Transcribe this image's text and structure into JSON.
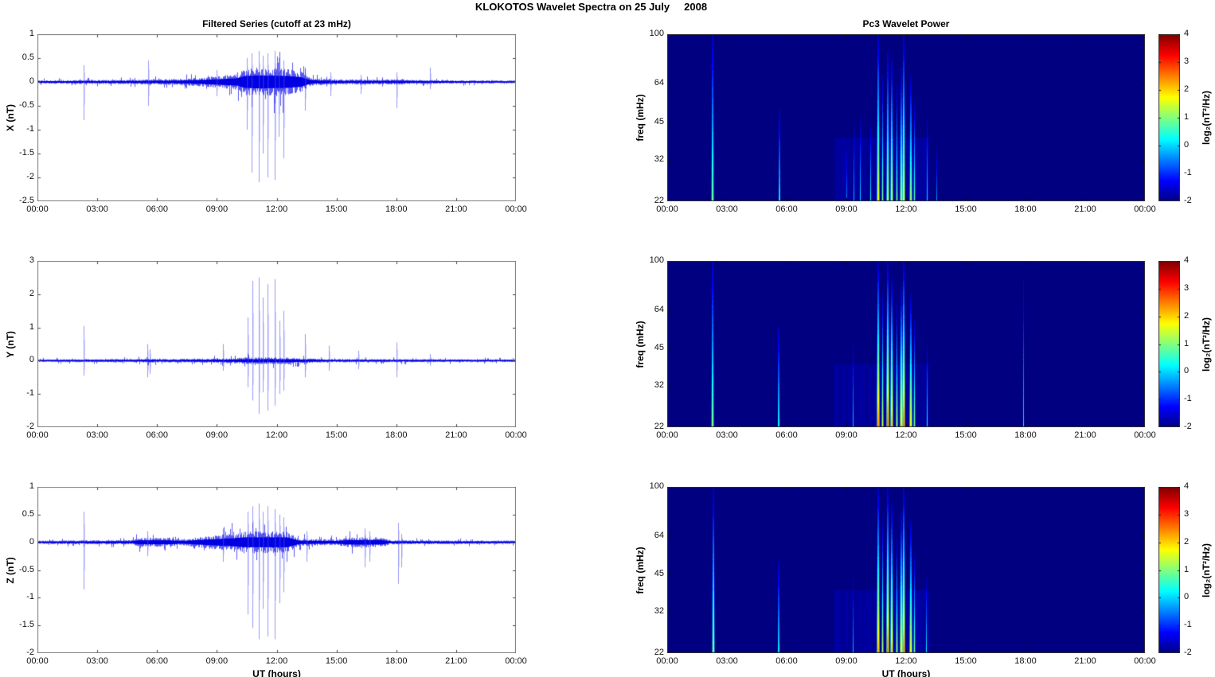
{
  "figure_title": "KLOKOTOS Wavelet Spectra on 25 July     2008",
  "colors": {
    "line": "#0000EE",
    "background": "#FFFFFF",
    "spectrogram_background": "#00008C",
    "axis": "#555555",
    "text": "#000000"
  },
  "time_axis": {
    "label": "UT (hours)",
    "ticks": [
      "00:00",
      "03:00",
      "06:00",
      "09:00",
      "12:00",
      "15:00",
      "18:00",
      "21:00",
      "00:00"
    ],
    "hours": [
      0,
      24
    ]
  },
  "colorbar": {
    "label": "log₂(nT²/Hz)",
    "ticks": [
      4,
      3,
      2,
      1,
      0,
      -1,
      -2
    ],
    "min": -2,
    "max": 4,
    "colormap": "jet"
  },
  "chart_data": [
    {
      "id": "ts-x",
      "type": "line",
      "column": "left",
      "row": 0,
      "title": "Filtered Series (cutoff at 23 mHz)",
      "ylabel": "X (nT)",
      "ylim": [
        -2.5,
        1
      ],
      "yticks": [
        1,
        0.5,
        0,
        -0.5,
        -1,
        -1.5,
        -2,
        -2.5
      ],
      "xticklabels": [
        "00:00",
        "03:00",
        "06:00",
        "09:00",
        "12:00",
        "15:00",
        "18:00",
        "21:00",
        "00:00"
      ],
      "noise_envelope": [
        [
          0,
          0.035
        ],
        [
          2,
          0.04
        ],
        [
          4.5,
          0.045
        ],
        [
          5.5,
          0.055
        ],
        [
          7,
          0.06
        ],
        [
          8,
          0.09
        ],
        [
          9,
          0.12
        ],
        [
          10,
          0.17
        ],
        [
          10.4,
          0.28
        ],
        [
          11,
          0.3
        ],
        [
          12.5,
          0.28
        ],
        [
          13.2,
          0.22
        ],
        [
          13.7,
          0.08
        ],
        [
          14.5,
          0.06
        ],
        [
          16,
          0.05
        ],
        [
          17.5,
          0.05
        ],
        [
          18,
          0.06
        ],
        [
          19,
          0.04
        ],
        [
          21,
          0.035
        ],
        [
          24,
          0.03
        ]
      ],
      "spikes": [
        [
          2.3,
          0.35,
          -0.8
        ],
        [
          5.55,
          0.45,
          -0.5
        ],
        [
          9.0,
          0.25,
          -0.3
        ],
        [
          10.5,
          0.5,
          -1.0
        ],
        [
          10.75,
          0.6,
          -1.9
        ],
        [
          11.1,
          0.65,
          -2.1
        ],
        [
          11.3,
          0.55,
          -1.5
        ],
        [
          11.55,
          0.6,
          -2.0
        ],
        [
          11.9,
          0.65,
          -2.05
        ],
        [
          12.1,
          0.5,
          -1.15
        ],
        [
          12.35,
          0.45,
          -1.6
        ],
        [
          13.4,
          0.3,
          -0.6
        ],
        [
          14.7,
          0.2,
          -0.3
        ],
        [
          16.2,
          0.15,
          -0.25
        ],
        [
          18.0,
          0.2,
          -0.55
        ],
        [
          19.7,
          0.3,
          -0.15
        ]
      ]
    },
    {
      "id": "ts-y",
      "type": "line",
      "column": "left",
      "row": 1,
      "title": "",
      "ylabel": "Y (nT)",
      "ylim": [
        -2,
        3
      ],
      "yticks": [
        3,
        2,
        1,
        0,
        -1,
        -2
      ],
      "xticklabels": [
        "00:00",
        "03:00",
        "06:00",
        "09:00",
        "12:00",
        "15:00",
        "18:00",
        "21:00",
        "00:00"
      ],
      "noise_envelope": [
        [
          0,
          0.04
        ],
        [
          2,
          0.045
        ],
        [
          5,
          0.05
        ],
        [
          5.6,
          0.07
        ],
        [
          6,
          0.05
        ],
        [
          8,
          0.06
        ],
        [
          9,
          0.07
        ],
        [
          10,
          0.08
        ],
        [
          10.4,
          0.1
        ],
        [
          12.5,
          0.1
        ],
        [
          13.5,
          0.07
        ],
        [
          14.5,
          0.05
        ],
        [
          24,
          0.04
        ]
      ],
      "spikes": [
        [
          2.3,
          1.05,
          -0.45
        ],
        [
          5.5,
          0.5,
          -0.5
        ],
        [
          5.65,
          0.35,
          -0.4
        ],
        [
          9.3,
          0.5,
          -0.3
        ],
        [
          10.55,
          1.3,
          -0.8
        ],
        [
          10.8,
          2.4,
          -1.2
        ],
        [
          11.1,
          2.5,
          -1.6
        ],
        [
          11.3,
          1.9,
          -0.95
        ],
        [
          11.55,
          2.3,
          -1.5
        ],
        [
          11.9,
          2.45,
          -1.35
        ],
        [
          12.15,
          1.2,
          -1.0
        ],
        [
          12.35,
          1.5,
          -0.9
        ],
        [
          13.4,
          0.8,
          -0.5
        ],
        [
          14.6,
          0.45,
          -0.3
        ],
        [
          16.1,
          0.3,
          -0.25
        ],
        [
          18.0,
          0.55,
          -0.5
        ],
        [
          19.7,
          0.2,
          -0.15
        ]
      ]
    },
    {
      "id": "ts-z",
      "type": "line",
      "column": "left",
      "row": 2,
      "title": "",
      "ylabel": "Z (nT)",
      "ylim": [
        -2,
        1
      ],
      "yticks": [
        1,
        0.5,
        0,
        -0.5,
        -1,
        -1.5,
        -2
      ],
      "xlabel": "UT (hours)",
      "xticklabels": [
        "00:00",
        "03:00",
        "06:00",
        "09:00",
        "12:00",
        "15:00",
        "18:00",
        "21:00",
        "00:00"
      ],
      "noise_envelope": [
        [
          0,
          0.03
        ],
        [
          2,
          0.035
        ],
        [
          4.7,
          0.04
        ],
        [
          5.1,
          0.08
        ],
        [
          6.6,
          0.08
        ],
        [
          7.2,
          0.05
        ],
        [
          8,
          0.09
        ],
        [
          9,
          0.13
        ],
        [
          9.8,
          0.16
        ],
        [
          10.4,
          0.2
        ],
        [
          12.5,
          0.2
        ],
        [
          13.1,
          0.07
        ],
        [
          15,
          0.05
        ],
        [
          15.6,
          0.09
        ],
        [
          17.2,
          0.09
        ],
        [
          17.7,
          0.04
        ],
        [
          19,
          0.035
        ],
        [
          24,
          0.03
        ]
      ],
      "spikes": [
        [
          2.3,
          0.55,
          -0.85
        ],
        [
          5.5,
          0.2,
          -0.25
        ],
        [
          9.3,
          0.25,
          -0.35
        ],
        [
          10.55,
          0.55,
          -1.3
        ],
        [
          10.8,
          0.65,
          -1.55
        ],
        [
          11.1,
          0.7,
          -1.75
        ],
        [
          11.3,
          0.55,
          -1.2
        ],
        [
          11.55,
          0.65,
          -1.7
        ],
        [
          11.9,
          0.6,
          -1.75
        ],
        [
          12.15,
          0.5,
          -1.1
        ],
        [
          12.35,
          0.45,
          -0.9
        ],
        [
          13.5,
          0.2,
          -0.35
        ],
        [
          16.4,
          0.25,
          -0.45
        ],
        [
          16.65,
          0.2,
          -0.35
        ],
        [
          18.1,
          0.35,
          -0.75
        ],
        [
          18.25,
          0.15,
          -0.45
        ]
      ]
    },
    {
      "id": "wav-x",
      "type": "heatmap",
      "column": "right",
      "row": 0,
      "title": "Pc3 Wavelet Power",
      "ylabel": "freq (mHz)",
      "yscale": "log",
      "ylim": [
        22,
        100
      ],
      "yticks": [
        100,
        64,
        45,
        32,
        22
      ],
      "xticklabels": [
        "00:00",
        "03:00",
        "06:00",
        "09:00",
        "12:00",
        "15:00",
        "18:00",
        "21:00",
        "00:00"
      ],
      "value_range": [
        -2,
        4
      ],
      "background_value": -2,
      "active_band": [
        8.4,
        13.2
      ],
      "stripes": [
        [
          2.25,
          0.9,
          1.0,
          2
        ],
        [
          5.6,
          0.1,
          0.55,
          2
        ],
        [
          9.0,
          -0.4,
          0.3,
          1
        ],
        [
          9.35,
          -0.1,
          0.45,
          1
        ],
        [
          9.7,
          0.1,
          0.5,
          1
        ],
        [
          10.2,
          0.3,
          0.45,
          1
        ],
        [
          10.55,
          1.7,
          1.0,
          2
        ],
        [
          10.8,
          1.1,
          0.75,
          1
        ],
        [
          11.05,
          1.4,
          0.9,
          2
        ],
        [
          11.25,
          1.5,
          0.85,
          2
        ],
        [
          11.5,
          1.1,
          0.7,
          1
        ],
        [
          11.7,
          1.3,
          0.8,
          2
        ],
        [
          11.85,
          1.8,
          1.0,
          2
        ],
        [
          12.2,
          1.2,
          0.75,
          2
        ],
        [
          12.4,
          0.9,
          0.6,
          1
        ],
        [
          13.05,
          0.2,
          0.5,
          1
        ],
        [
          13.5,
          -0.4,
          0.3,
          1
        ]
      ]
    },
    {
      "id": "wav-y",
      "type": "heatmap",
      "column": "right",
      "row": 1,
      "title": "",
      "ylabel": "freq (mHz)",
      "yscale": "log",
      "ylim": [
        22,
        100
      ],
      "yticks": [
        100,
        64,
        45,
        32,
        22
      ],
      "xticklabels": [
        "00:00",
        "03:00",
        "06:00",
        "09:00",
        "12:00",
        "15:00",
        "18:00",
        "21:00",
        "00:00"
      ],
      "value_range": [
        -2,
        4
      ],
      "background_value": -2,
      "active_band": [
        8.4,
        13.2
      ],
      "stripes": [
        [
          2.25,
          1.0,
          1.0,
          2
        ],
        [
          5.55,
          0.3,
          0.6,
          2
        ],
        [
          9.3,
          0.0,
          0.5,
          1
        ],
        [
          10.55,
          2.4,
          1.0,
          2
        ],
        [
          10.8,
          1.6,
          0.8,
          1
        ],
        [
          11.05,
          2.6,
          1.0,
          2
        ],
        [
          11.25,
          2.2,
          0.9,
          2
        ],
        [
          11.5,
          1.6,
          0.75,
          1
        ],
        [
          11.7,
          2.0,
          0.85,
          2
        ],
        [
          11.85,
          2.6,
          1.0,
          2
        ],
        [
          12.2,
          1.8,
          0.8,
          2
        ],
        [
          12.4,
          1.2,
          0.65,
          1
        ],
        [
          13.05,
          0.4,
          0.5,
          1
        ],
        [
          17.9,
          0.2,
          0.9,
          1
        ]
      ]
    },
    {
      "id": "wav-z",
      "type": "heatmap",
      "column": "right",
      "row": 2,
      "title": "",
      "ylabel": "freq (mHz)",
      "yscale": "log",
      "ylim": [
        22,
        100
      ],
      "yticks": [
        100,
        64,
        45,
        32,
        22
      ],
      "xlabel": "UT (hours)",
      "xticklabels": [
        "00:00",
        "03:00",
        "06:00",
        "09:00",
        "12:00",
        "15:00",
        "18:00",
        "21:00",
        "00:00"
      ],
      "value_range": [
        -2,
        4
      ],
      "background_value": -2,
      "active_band": [
        8.4,
        13.2
      ],
      "stripes": [
        [
          2.3,
          1.1,
          1.0,
          2
        ],
        [
          5.55,
          0.2,
          0.55,
          2
        ],
        [
          9.3,
          -0.1,
          0.45,
          1
        ],
        [
          10.55,
          2.2,
          1.0,
          2
        ],
        [
          10.8,
          1.5,
          0.8,
          1
        ],
        [
          11.05,
          2.5,
          1.0,
          2
        ],
        [
          11.25,
          2.1,
          0.9,
          2
        ],
        [
          11.5,
          1.5,
          0.7,
          1
        ],
        [
          11.7,
          1.9,
          0.85,
          2
        ],
        [
          11.85,
          2.5,
          1.0,
          2
        ],
        [
          12.2,
          1.7,
          0.8,
          2
        ],
        [
          12.4,
          1.1,
          0.6,
          1
        ],
        [
          13.0,
          0.3,
          0.45,
          1
        ]
      ]
    }
  ]
}
